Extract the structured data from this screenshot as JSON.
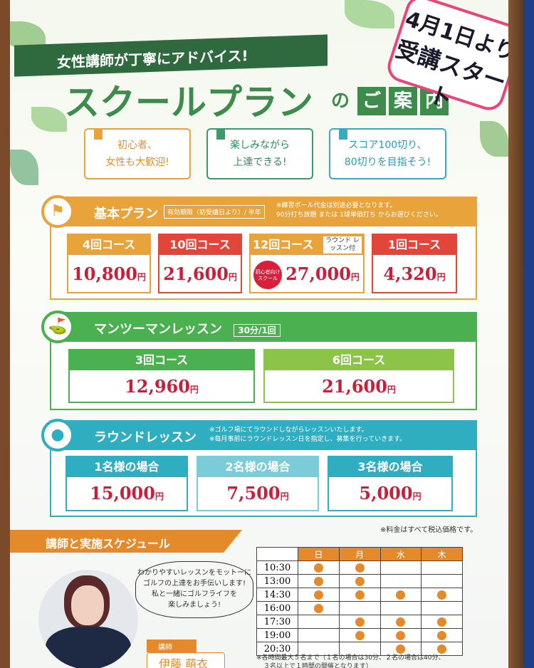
{
  "header": {
    "banner": "女性講師が丁寧にアドバイス!",
    "title": "スクールプラン",
    "title_suffix": [
      "の",
      "ご",
      "案",
      "内"
    ],
    "sticker": [
      "4月1日より",
      "受講スタート"
    ]
  },
  "features": [
    {
      "lines": [
        "初心者、",
        "女性も大歓迎!"
      ],
      "color": "#e8a33a"
    },
    {
      "lines": [
        "楽しみながら",
        "上達できる!"
      ],
      "color": "#3a9a6a"
    },
    {
      "lines": [
        "スコア100切り、",
        "80切りを目指そう!"
      ],
      "color": "#3aaac0"
    }
  ],
  "basic_plan": {
    "title": "基本プラン",
    "validity": "有効期限（初受講日より）/ 半年",
    "notes": [
      "※練習ボール代金は別途必要となります。",
      "90分打ち放題 または 1球単価打ち からお選びください。"
    ],
    "color": "#e8a33a",
    "icon": "golf-flag-icon",
    "courses": [
      {
        "name": "4回コース",
        "price": "10,800",
        "unit": "円",
        "header_color": "#e8a33a"
      },
      {
        "name": "10回コース",
        "price": "21,600",
        "unit": "円",
        "header_color": "#e2453a"
      },
      {
        "name": "12回コース",
        "tag": "ラウンド レッスン付",
        "badge": "初心者向け スクール",
        "price": "27,000",
        "unit": "円",
        "header_color": "#e8a33a"
      },
      {
        "name": "1回コース",
        "price": "4,320",
        "unit": "円",
        "header_color": "#e2453a"
      }
    ]
  },
  "man_to_man": {
    "title": "マンツーマンレッスン",
    "duration": "30分/1回",
    "color": "#4bb04f",
    "icon": "golf-club-icon",
    "courses": [
      {
        "name": "3回コース",
        "price": "12,960",
        "unit": "円"
      },
      {
        "name": "6回コース",
        "price": "21,600",
        "unit": "円"
      }
    ]
  },
  "round_lesson": {
    "title": "ラウンドレッスン",
    "notes": [
      "※ゴルフ場にてラウンドしながらレッスンいたします。",
      "※毎月事前にラウンドレッスン日を指定し、募集を行っていきます。"
    ],
    "color": "#2eaec0",
    "icon": "golf-ball-tee-icon",
    "courses": [
      {
        "name": "1名様の場合",
        "price": "15,000",
        "unit": "円"
      },
      {
        "name": "2名様の場合",
        "price": "7,500",
        "unit": "円"
      },
      {
        "name": "3名様の場合",
        "price": "5,000",
        "unit": "円"
      }
    ]
  },
  "tax_note": "※料金はすべて税込価格です。",
  "schedule": {
    "title": "講師と実施スケジュール",
    "message": [
      "わかりやすいレッスンをモットーに",
      "ゴルフの上達をお手伝いします!",
      "私と一緒にゴルフライフを",
      "楽しみましょう!"
    ],
    "instructor_label": "講師",
    "instructor_name": "伊藤 萌衣",
    "days": [
      "日",
      "月",
      "水",
      "木"
    ],
    "rows": [
      {
        "time": "10:30",
        "slots": [
          true,
          true,
          false,
          false
        ]
      },
      {
        "time": "13:00",
        "slots": [
          true,
          true,
          false,
          false
        ]
      },
      {
        "time": "14:30",
        "slots": [
          true,
          true,
          true,
          true
        ]
      },
      {
        "time": "16:00",
        "slots": [
          true,
          false,
          false,
          false
        ]
      },
      {
        "time": "17:30",
        "slots": [
          false,
          true,
          true,
          true
        ]
      },
      {
        "time": "19:00",
        "slots": [
          false,
          true,
          true,
          true
        ]
      },
      {
        "time": "20:30",
        "slots": [
          false,
          false,
          true,
          true
        ]
      }
    ],
    "footnote": [
      "※各時間最大５名まで（１名の場合は30分、２名の場合は40分、",
      "３名以上で１時間の開催となります）"
    ]
  }
}
